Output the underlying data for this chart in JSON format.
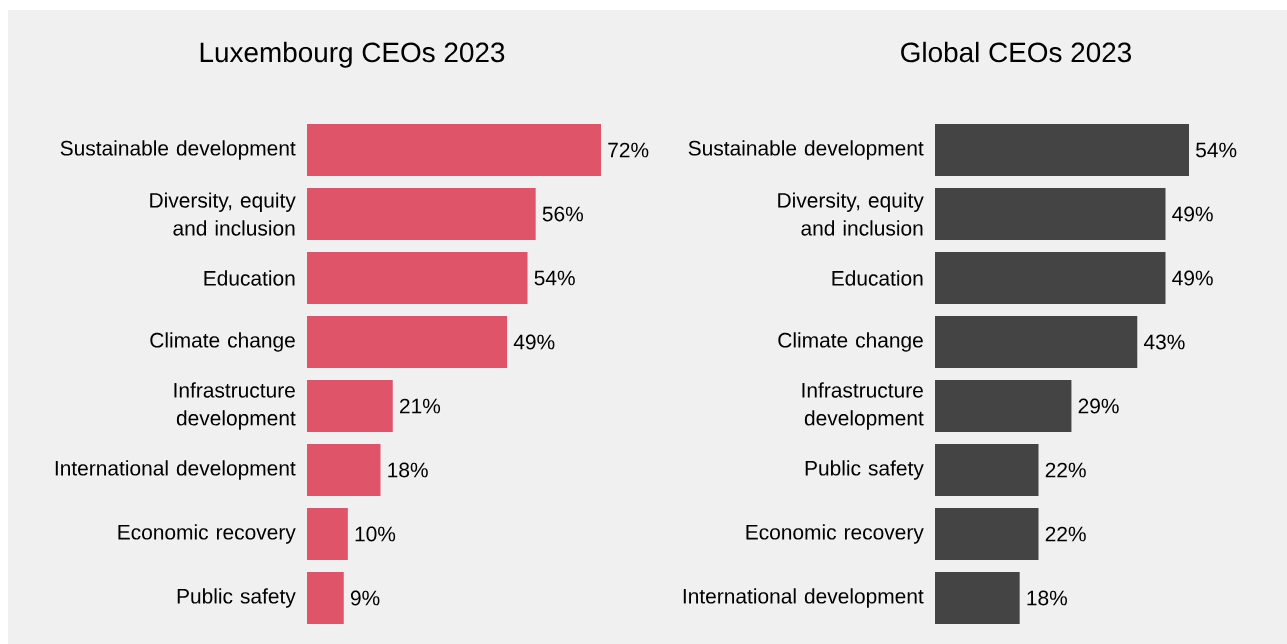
{
  "chart_data": [
    {
      "type": "bar",
      "orientation": "horizontal",
      "title": "Luxembourg CEOs 2023",
      "color": "#e0546a",
      "categories": [
        "Sustainable development",
        "Diversity, equity and inclusion",
        "Education",
        "Climate change",
        "Infrastructure development",
        "International development",
        "Economic recovery",
        "Public safety"
      ],
      "values": [
        72,
        56,
        54,
        49,
        21,
        18,
        10,
        9
      ],
      "value_labels": [
        "72%",
        "56%",
        "54%",
        "49%",
        "21%",
        "18%",
        "10%",
        "9%"
      ]
    },
    {
      "type": "bar",
      "orientation": "horizontal",
      "title": "Global CEOs 2023",
      "color": "#444444",
      "categories": [
        "Sustainable development",
        "Diversity, equity and inclusion",
        "Education",
        "Climate change",
        "Infrastructure development",
        "Public safety",
        "Economic recovery",
        "International development"
      ],
      "values": [
        54,
        49,
        49,
        43,
        29,
        22,
        22,
        18
      ],
      "value_labels": [
        "54%",
        "49%",
        "49%",
        "43%",
        "29%",
        "22%",
        "22%",
        "18%"
      ]
    }
  ]
}
